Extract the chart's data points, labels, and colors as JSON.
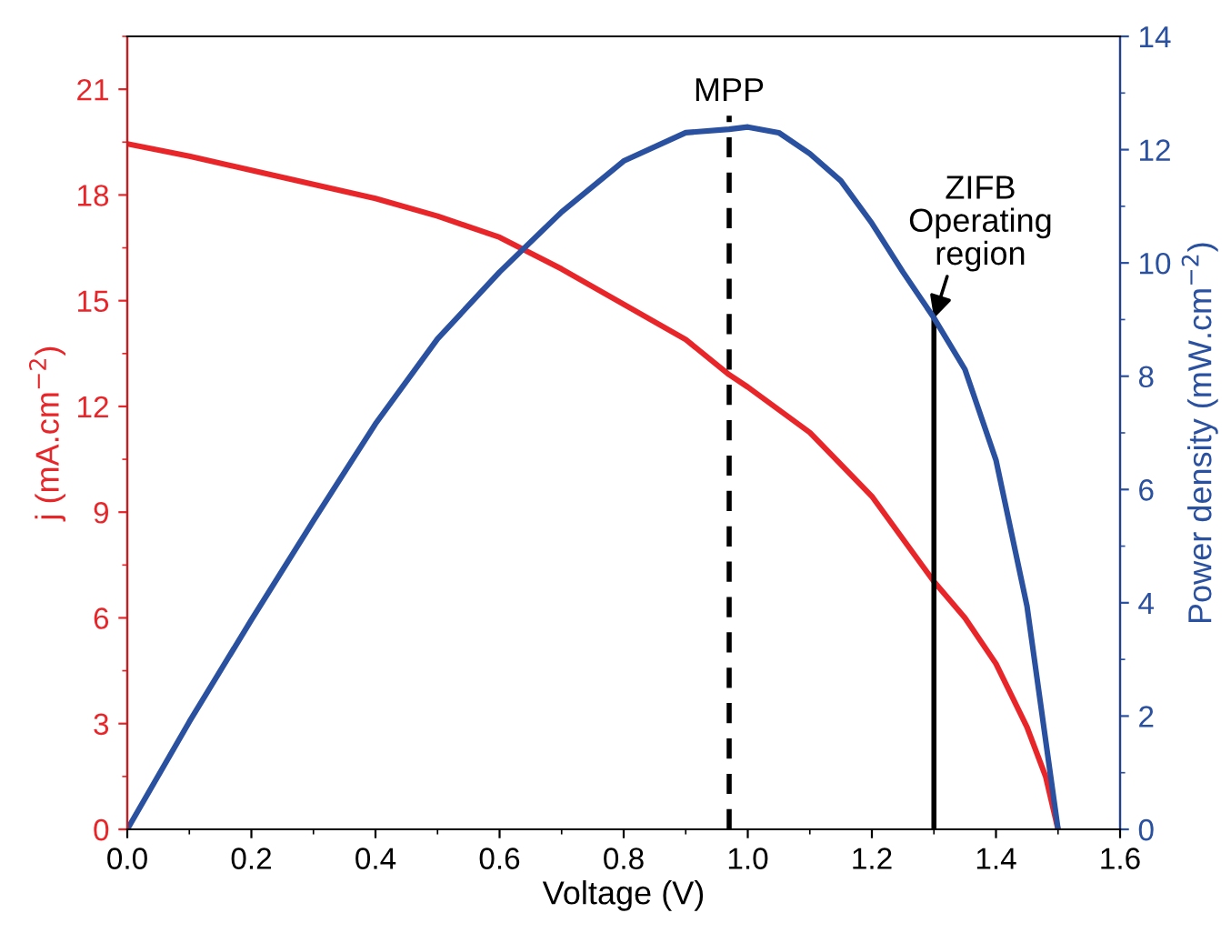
{
  "chart_data": {
    "type": "line",
    "xlabel": "Voltage (V)",
    "ylabel": "j (mA.cm$^{−2}$)",
    "y2label": "Power density (mW.cm$^{−2}$)",
    "xlim": [
      0,
      1.6
    ],
    "xticks": [
      {
        "value": 0,
        "label": "0.0"
      },
      0.2,
      0.4,
      0.6,
      0.8,
      {
        "value": 1,
        "label": "1.0"
      },
      1.2,
      1.4,
      1.6
    ],
    "ylim": [
      0,
      22.5
    ],
    "yticks": [
      0,
      3,
      6,
      9,
      12,
      15,
      18,
      21
    ],
    "y2lim": [
      0,
      14
    ],
    "y2ticks": [
      0,
      2,
      4,
      6,
      8,
      10,
      12,
      14
    ],
    "series": [
      {
        "color": "#e8262a",
        "x": [
          0,
          0.1,
          0.2,
          0.3,
          0.4,
          0.5,
          0.6,
          0.7,
          0.8,
          0.9,
          0.97,
          1.0,
          1.1,
          1.2,
          1.3,
          1.35,
          1.4,
          1.45,
          1.48,
          1.5
        ],
        "values": [
          19.45,
          19.1,
          18.7,
          18.3,
          17.9,
          17.4,
          16.8,
          15.9,
          14.9,
          13.9,
          12.9,
          12.55,
          11.26,
          9.45,
          7.03,
          6.0,
          4.7,
          2.9,
          1.5,
          0
        ]
      },
      {
        "color": "#2a50a0",
        "axis": "y2",
        "x": [
          0,
          0.1,
          0.2,
          0.3,
          0.4,
          0.5,
          0.6,
          0.7,
          0.8,
          0.9,
          0.97,
          1.0,
          1.05,
          1.1,
          1.15,
          1.2,
          1.25,
          1.3,
          1.35,
          1.4,
          1.45,
          1.5
        ],
        "values": [
          0,
          1.9,
          3.7,
          5.45,
          7.16,
          8.66,
          9.84,
          10.9,
          11.8,
          12.3,
          12.36,
          12.4,
          12.3,
          11.93,
          11.45,
          10.7,
          9.84,
          9.03,
          8.12,
          6.52,
          3.94,
          0
        ]
      }
    ],
    "ref_lines": [
      {
        "axis": "x",
        "value": 0.97,
        "label": "MPP",
        "line_style": "dashed",
        "color": "#000000"
      },
      {
        "axis": "x",
        "value": 1.3,
        "label": null,
        "line_style": "solid",
        "color": "#000000"
      }
    ],
    "annotations": [
      {
        "text": "ZIFB\nOperating\nregion",
        "x": 1.3,
        "y": 14.5
      }
    ],
    "grid": false,
    "legend": false
  }
}
